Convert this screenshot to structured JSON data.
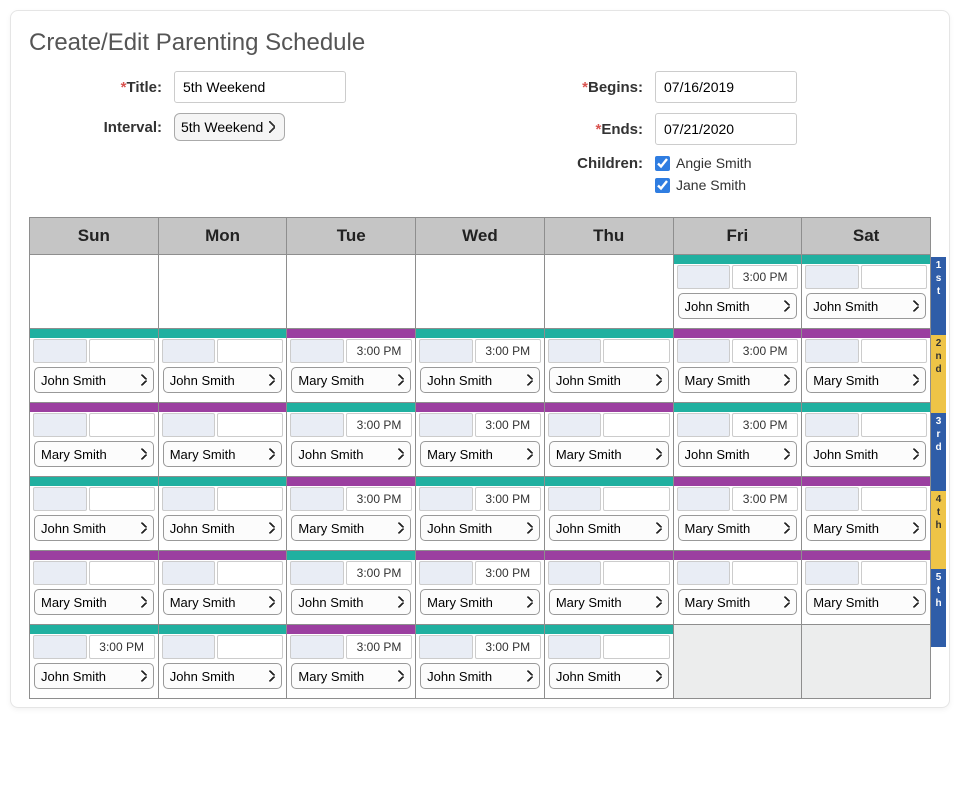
{
  "title": "Create/Edit Parenting Schedule",
  "colors": {
    "teal": "#20b0a0",
    "purple": "#9b3fa0",
    "week_blue": "#2f5da8",
    "week_gold": "#eec447"
  },
  "form": {
    "title_label": "Title:",
    "title_value": "5th Weekend",
    "interval_label": "Interval:",
    "interval_value": "5th Weekend",
    "begins_label": "Begins:",
    "begins_value": "07/16/2019",
    "ends_label": "Ends:",
    "ends_value": "07/21/2020",
    "children_label": "Children:",
    "children": [
      {
        "name": "Angie Smith",
        "checked": true
      },
      {
        "name": "Jane Smith",
        "checked": true
      }
    ]
  },
  "calendar": {
    "day_headers": [
      "Sun",
      "Mon",
      "Tue",
      "Wed",
      "Thu",
      "Fri",
      "Sat"
    ],
    "week_labels": [
      {
        "text": "1st",
        "color": "blue"
      },
      {
        "text": "2nd",
        "color": "gold"
      },
      {
        "text": "3rd",
        "color": "blue"
      },
      {
        "text": "4th",
        "color": "gold"
      },
      {
        "text": "5th",
        "color": "blue"
      }
    ],
    "rows": [
      [
        {
          "blank": true,
          "bar": "none"
        },
        {
          "blank": true,
          "bar": "none"
        },
        {
          "blank": true,
          "bar": "none"
        },
        {
          "blank": true,
          "bar": "none"
        },
        {
          "blank": true,
          "bar": "none"
        },
        {
          "bar": "teal",
          "time": "3:00 PM",
          "parent": "John Smith"
        },
        {
          "bar": "teal",
          "time": "",
          "parent": "John Smith"
        }
      ],
      [
        {
          "bar": "teal",
          "time": "",
          "parent": "John Smith"
        },
        {
          "bar": "teal",
          "time": "",
          "parent": "John Smith"
        },
        {
          "bar": "purple",
          "time": "3:00 PM",
          "parent": "Mary Smith"
        },
        {
          "bar": "teal",
          "time": "3:00 PM",
          "parent": "John Smith"
        },
        {
          "bar": "teal",
          "time": "",
          "parent": "John Smith"
        },
        {
          "bar": "purple",
          "time": "3:00 PM",
          "parent": "Mary Smith"
        },
        {
          "bar": "purple",
          "time": "",
          "parent": "Mary Smith"
        }
      ],
      [
        {
          "bar": "purple",
          "time": "",
          "parent": "Mary Smith"
        },
        {
          "bar": "purple",
          "time": "",
          "parent": "Mary Smith"
        },
        {
          "bar": "teal",
          "time": "3:00 PM",
          "parent": "John Smith"
        },
        {
          "bar": "purple",
          "time": "3:00 PM",
          "parent": "Mary Smith"
        },
        {
          "bar": "purple",
          "time": "",
          "parent": "Mary Smith"
        },
        {
          "bar": "teal",
          "time": "3:00 PM",
          "parent": "John Smith"
        },
        {
          "bar": "teal",
          "time": "",
          "parent": "John Smith"
        }
      ],
      [
        {
          "bar": "teal",
          "time": "",
          "parent": "John Smith"
        },
        {
          "bar": "teal",
          "time": "",
          "parent": "John Smith"
        },
        {
          "bar": "purple",
          "time": "3:00 PM",
          "parent": "Mary Smith"
        },
        {
          "bar": "teal",
          "time": "3:00 PM",
          "parent": "John Smith"
        },
        {
          "bar": "teal",
          "time": "",
          "parent": "John Smith"
        },
        {
          "bar": "purple",
          "time": "3:00 PM",
          "parent": "Mary Smith"
        },
        {
          "bar": "purple",
          "time": "",
          "parent": "Mary Smith"
        }
      ],
      [
        {
          "bar": "purple",
          "time": "",
          "parent": "Mary Smith"
        },
        {
          "bar": "purple",
          "time": "",
          "parent": "Mary Smith"
        },
        {
          "bar": "teal",
          "time": "3:00 PM",
          "parent": "John Smith"
        },
        {
          "bar": "purple",
          "time": "3:00 PM",
          "parent": "Mary Smith"
        },
        {
          "bar": "purple",
          "time": "",
          "parent": "Mary Smith"
        },
        {
          "bar": "purple",
          "time": "",
          "parent": "Mary Smith"
        },
        {
          "bar": "purple",
          "time": "",
          "parent": "Mary Smith"
        }
      ],
      [
        {
          "bar": "teal",
          "time": "3:00 PM",
          "parent": "John Smith"
        },
        {
          "bar": "teal",
          "time": "",
          "parent": "John Smith"
        },
        {
          "bar": "purple",
          "time": "3:00 PM",
          "parent": "Mary Smith"
        },
        {
          "bar": "teal",
          "time": "3:00 PM",
          "parent": "John Smith"
        },
        {
          "bar": "teal",
          "time": "",
          "parent": "John Smith"
        },
        {
          "grayed": true,
          "bar": "none"
        },
        {
          "grayed": true,
          "bar": "none"
        }
      ]
    ]
  }
}
